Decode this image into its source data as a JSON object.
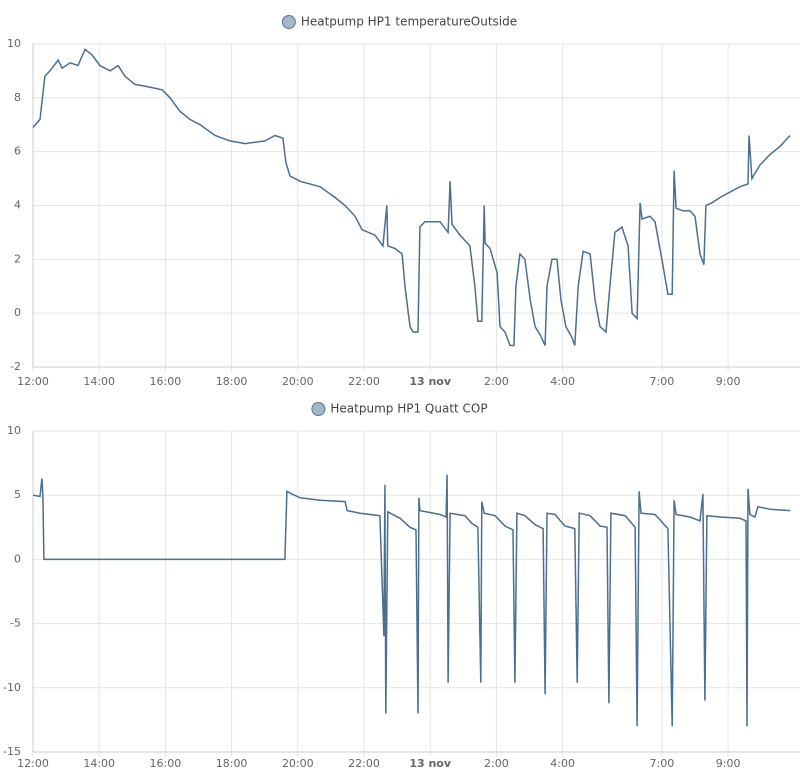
{
  "chart_data": [
    {
      "type": "line",
      "series": [
        {
          "name": "Heatpump HP1 temperatureOutside",
          "color": "#4a6f8f",
          "x": [
            0,
            0.21,
            0.36,
            0.51,
            0.76,
            0.88,
            1.12,
            1.36,
            1.57,
            1.78,
            2.02,
            2.33,
            2.57,
            2.78,
            3.08,
            3.53,
            3.9,
            4.14,
            4.44,
            4.74,
            5.05,
            5.5,
            5.95,
            6.41,
            7.01,
            7.31,
            7.55,
            7.64,
            7.76,
            8.07,
            8.67,
            9.12,
            9.43,
            9.73,
            9.94,
            10.33,
            10.57,
            10.69,
            10.72,
            10.94,
            11.15,
            11.24,
            11.39,
            11.48,
            11.63,
            11.69,
            11.84,
            12.3,
            12.54,
            12.6,
            12.66,
            12.9,
            13.2,
            13.35,
            13.44,
            13.56,
            13.63,
            13.66,
            13.81,
            14.02,
            14.11,
            14.26,
            14.41,
            14.53,
            14.59,
            14.71,
            14.86,
            15.02,
            15.17,
            15.32,
            15.47,
            15.53,
            15.68,
            15.83,
            15.95,
            16.1,
            16.28,
            16.37,
            16.47,
            16.62,
            16.83,
            16.98,
            17.13,
            17.31,
            17.43,
            17.58,
            17.79,
            17.98,
            18.1,
            18.25,
            18.34,
            18.4,
            18.64,
            18.79,
            19.0,
            19.18,
            19.31,
            19.37,
            19.43,
            19.64,
            19.85,
            20.0,
            20.15,
            20.27,
            20.33,
            20.51,
            20.76,
            21.06,
            21.36,
            21.6,
            21.63,
            21.72,
            21.96,
            22.27,
            22.57,
            22.87
          ],
          "values": [
            6.9,
            7.2,
            8.8,
            9.0,
            9.4,
            9.1,
            9.3,
            9.2,
            9.8,
            9.6,
            9.2,
            9.0,
            9.2,
            8.8,
            8.5,
            8.4,
            8.3,
            8.0,
            7.5,
            7.2,
            7.0,
            6.6,
            6.4,
            6.3,
            6.4,
            6.6,
            6.5,
            5.6,
            5.1,
            4.9,
            4.7,
            4.3,
            4.0,
            3.6,
            3.1,
            2.9,
            2.5,
            4.0,
            2.5,
            2.4,
            2.2,
            1.0,
            -0.5,
            -0.7,
            -0.7,
            3.2,
            3.4,
            3.4,
            3.0,
            4.9,
            3.3,
            2.9,
            2.5,
            1.0,
            -0.3,
            -0.3,
            4.0,
            2.6,
            2.4,
            1.5,
            -0.5,
            -0.7,
            -1.2,
            -1.2,
            1.0,
            2.2,
            2.0,
            0.5,
            -0.5,
            -0.8,
            -1.2,
            1.0,
            2.0,
            2.0,
            0.5,
            -0.5,
            -0.9,
            -1.2,
            1.0,
            2.3,
            2.2,
            0.5,
            -0.5,
            -0.7,
            1.0,
            3.0,
            3.2,
            2.5,
            0.0,
            -0.2,
            4.1,
            3.5,
            3.6,
            3.4,
            2.0,
            0.7,
            0.7,
            5.3,
            3.9,
            3.8,
            3.8,
            3.6,
            2.2,
            1.8,
            4.0,
            4.1,
            4.3,
            4.5,
            4.7,
            4.8,
            6.6,
            5.0,
            5.5,
            5.9,
            6.2,
            6.6
          ]
        }
      ],
      "xlim": [
        0,
        22.87
      ],
      "xticks": [
        {
          "value": 0,
          "label": "12:00"
        },
        {
          "value": 2,
          "label": "14:00"
        },
        {
          "value": 4,
          "label": "16:00"
        },
        {
          "value": 6,
          "label": "18:00"
        },
        {
          "value": 8,
          "label": "20:00"
        },
        {
          "value": 10,
          "label": "22:00"
        },
        {
          "value": 12,
          "label": "13 nov"
        },
        {
          "value": 14,
          "label": "2:00"
        },
        {
          "value": 16,
          "label": "4:00"
        },
        {
          "value": 19,
          "label": "7:00"
        },
        {
          "value": 21,
          "label": "9:00"
        }
      ],
      "ylim": [
        -2,
        10
      ],
      "yticks": [
        -2,
        0,
        2,
        4,
        6,
        8,
        10
      ],
      "grid": true
    },
    {
      "type": "line",
      "series": [
        {
          "name": "Heatpump HP1 Quatt COP",
          "color": "#4a6f8f",
          "x": [
            0,
            0.21,
            0.27,
            0.3,
            0.33,
            7.61,
            7.67,
            7.82,
            8.07,
            8.67,
            9.43,
            9.49,
            9.88,
            10.48,
            10.6,
            10.63,
            10.66,
            10.72,
            11.09,
            11.39,
            11.57,
            11.63,
            11.66,
            11.69,
            12.3,
            12.48,
            12.51,
            12.54,
            12.6,
            13.05,
            13.26,
            13.44,
            13.53,
            13.56,
            13.63,
            13.96,
            14.26,
            14.5,
            14.56,
            14.62,
            14.86,
            15.17,
            15.41,
            15.47,
            15.53,
            15.77,
            16.07,
            16.37,
            16.44,
            16.5,
            16.83,
            17.13,
            17.34,
            17.4,
            17.46,
            17.89,
            18.19,
            18.25,
            18.31,
            18.37,
            18.79,
            19.18,
            19.31,
            19.37,
            19.43,
            19.85,
            20.15,
            20.24,
            20.3,
            20.36,
            20.76,
            21.36,
            21.54,
            21.57,
            21.6,
            21.66,
            21.81,
            21.9,
            22.27,
            22.87
          ],
          "values": [
            5.0,
            4.9,
            6.3,
            5.0,
            0,
            0,
            5.3,
            5.1,
            4.8,
            4.6,
            4.5,
            3.8,
            3.6,
            3.4,
            -6,
            5.8,
            -12,
            3.7,
            3.2,
            2.5,
            2.3,
            -12,
            4.8,
            3.8,
            3.5,
            3.3,
            6.6,
            -9.6,
            3.6,
            3.4,
            2.8,
            2.5,
            -9.6,
            4.5,
            3.6,
            3.4,
            2.6,
            2.3,
            -9.6,
            3.6,
            3.4,
            2.7,
            2.4,
            -10.5,
            3.6,
            3.5,
            2.6,
            2.4,
            -9.6,
            3.6,
            3.4,
            2.6,
            2.5,
            -11.2,
            3.6,
            3.4,
            2.5,
            -13,
            5.3,
            3.6,
            3.5,
            2.4,
            -13,
            4.6,
            3.5,
            3.3,
            3.0,
            5.1,
            -11,
            3.4,
            3.3,
            3.2,
            3.0,
            -13,
            5.5,
            3.5,
            3.3,
            4.1,
            3.9,
            3.8
          ]
        }
      ],
      "xlim": [
        0,
        22.87
      ],
      "xticks": [
        {
          "value": 0,
          "label": "12:00"
        },
        {
          "value": 2,
          "label": "14:00"
        },
        {
          "value": 4,
          "label": "16:00"
        },
        {
          "value": 6,
          "label": "18:00"
        },
        {
          "value": 8,
          "label": "20:00"
        },
        {
          "value": 10,
          "label": "22:00"
        },
        {
          "value": 12,
          "label": "13 nov"
        },
        {
          "value": 14,
          "label": "2:00"
        },
        {
          "value": 16,
          "label": "4:00"
        },
        {
          "value": 19,
          "label": "7:00"
        },
        {
          "value": 21,
          "label": "9:00"
        }
      ],
      "ylim": [
        -15,
        10
      ],
      "yticks": [
        -15,
        -10,
        -5,
        0,
        5,
        10
      ],
      "grid": true
    }
  ]
}
